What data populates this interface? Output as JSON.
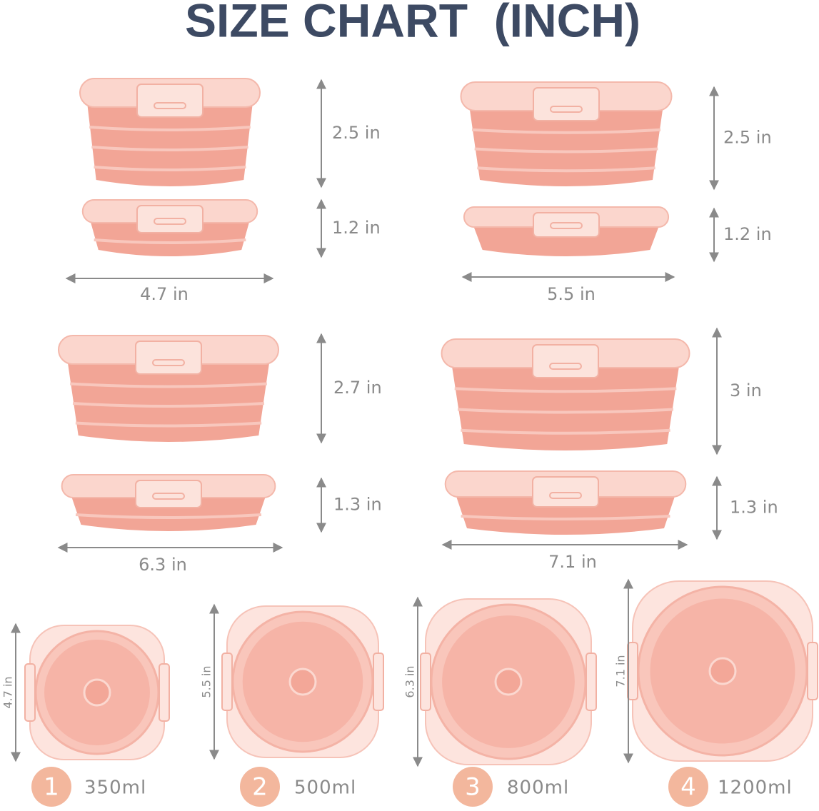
{
  "title": "SIZE CHART  (INCH)",
  "side_views": [
    {
      "expanded_height": "2.5 in",
      "collapsed_height": "1.2 in",
      "diameter": "4.7 in"
    },
    {
      "expanded_height": "2.5 in",
      "collapsed_height": "1.2 in",
      "diameter": "5.5 in"
    },
    {
      "expanded_height": "2.7 in",
      "collapsed_height": "1.3 in",
      "diameter": "6.3 in"
    },
    {
      "expanded_height": "3 in",
      "collapsed_height": "1.3 in",
      "diameter": "7.1 in"
    }
  ],
  "top_views": [
    {
      "number": "1",
      "capacity": "350ml",
      "diameter": "4.7 in"
    },
    {
      "number": "2",
      "capacity": "500ml",
      "diameter": "5.5 in"
    },
    {
      "number": "3",
      "capacity": "800ml",
      "diameter": "6.3 in"
    },
    {
      "number": "4",
      "capacity": "1200ml",
      "diameter": "7.1 in"
    }
  ]
}
